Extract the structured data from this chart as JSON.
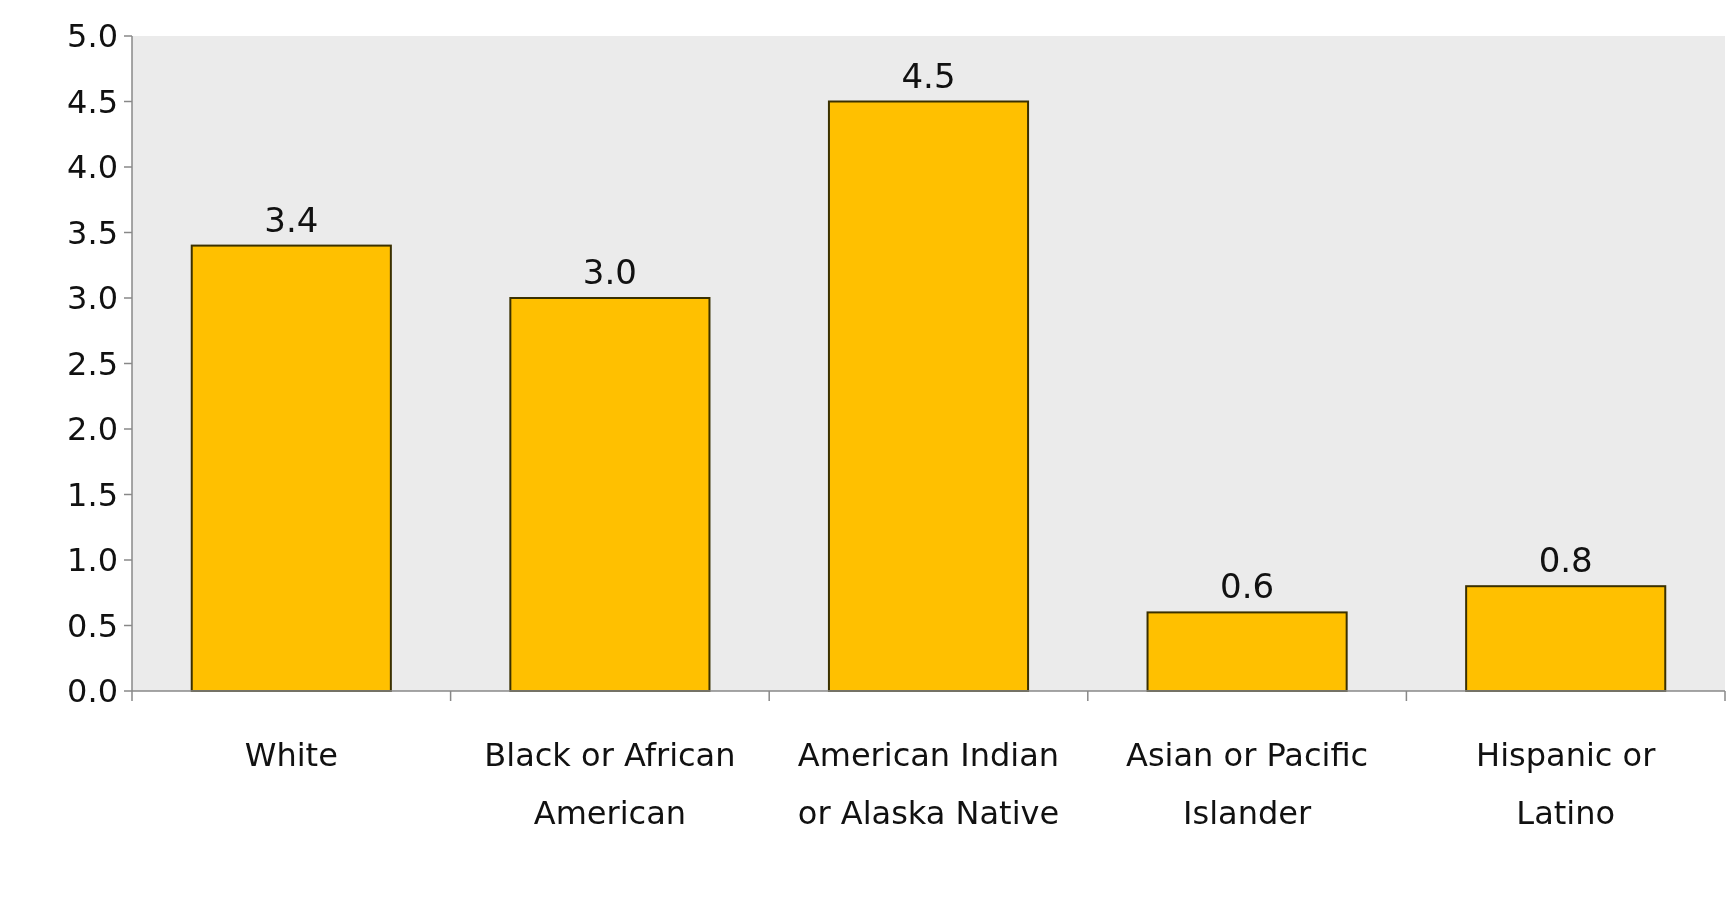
{
  "chart_data": {
    "type": "bar",
    "categories": [
      "White",
      "Black or African American",
      "American Indian or Alaska Native",
      "Asian or Pacific Islander",
      "Hispanic or Latino"
    ],
    "values": [
      3.4,
      3.0,
      4.5,
      0.6,
      0.8
    ],
    "color": "#ffc000",
    "ylim": [
      0,
      5
    ],
    "yticks": [
      {
        "value": 0,
        "label": "0.0"
      },
      {
        "value": 0.5,
        "label": "0.5"
      },
      {
        "value": 1,
        "label": "1.0"
      },
      {
        "value": 1.5,
        "label": "1.5"
      },
      {
        "value": 2,
        "label": "2.0"
      },
      {
        "value": 2.5,
        "label": "2.5"
      },
      {
        "value": 3,
        "label": "3.0"
      },
      {
        "value": 3.5,
        "label": "3.5"
      },
      {
        "value": 4,
        "label": "4.0"
      },
      {
        "value": 4.5,
        "label": "4.5"
      },
      {
        "value": 5,
        "label": "5.0"
      }
    ],
    "value_labels": [
      "3.4",
      "3.0",
      "4.5",
      "0.6",
      "0.8"
    ]
  }
}
